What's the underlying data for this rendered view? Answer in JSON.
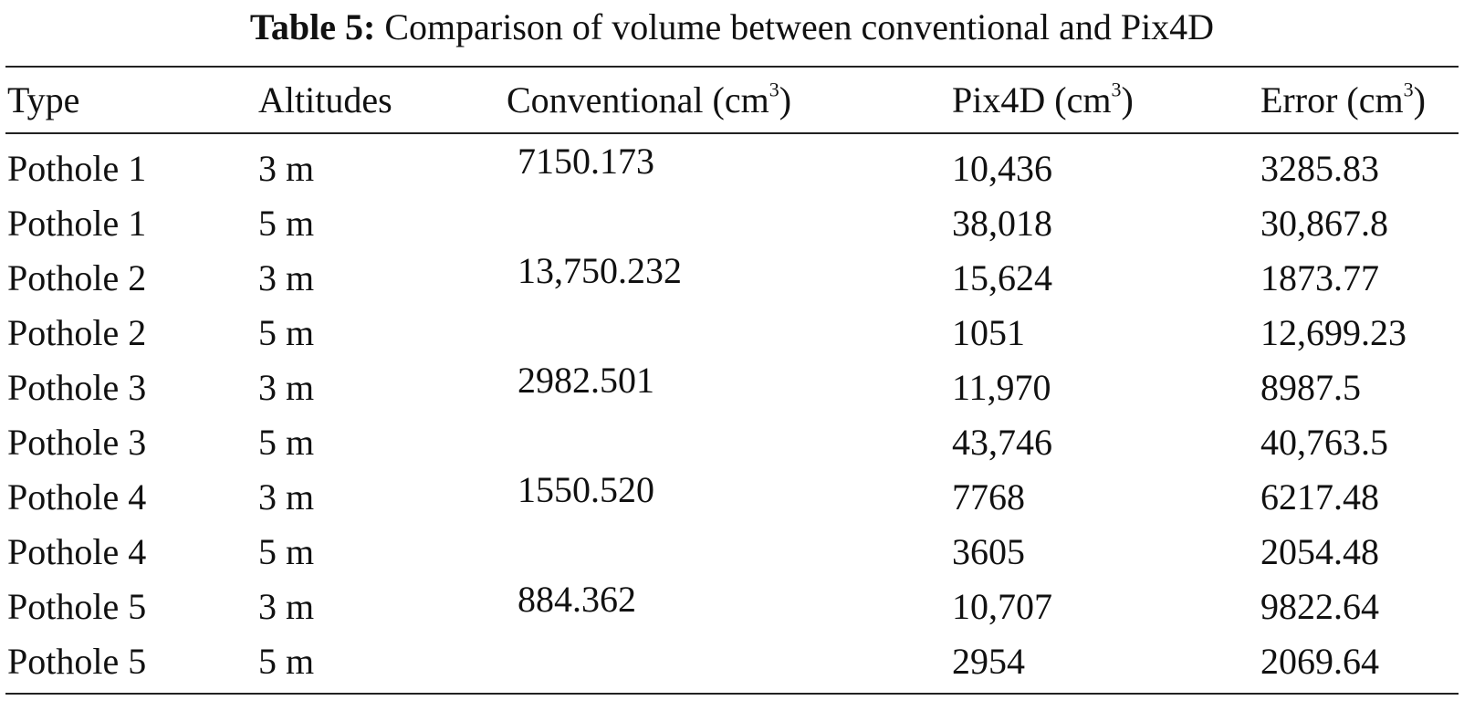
{
  "caption": {
    "label": "Table 5:",
    "text": "Comparison of volume between conventional and Pix4D"
  },
  "table": {
    "headers": {
      "type": "Type",
      "altitudes": "Altitudes",
      "conventional": "Conventional (cm",
      "pix4d": "Pix4D (cm",
      "error": "Error (cm",
      "unit_sup": "3",
      "close": ")"
    },
    "rows": [
      {
        "type": "Pothole 1",
        "altitude": "3 m",
        "conventional": "7150.173",
        "pix4d": "10,436",
        "error": "3285.83"
      },
      {
        "type": "Pothole 1",
        "altitude": "5 m",
        "conventional": "",
        "pix4d": "38,018",
        "error": "30,867.8"
      },
      {
        "type": "Pothole 2",
        "altitude": "3 m",
        "conventional": "13,750.232",
        "pix4d": "15,624",
        "error": "1873.77"
      },
      {
        "type": "Pothole 2",
        "altitude": "5 m",
        "conventional": "",
        "pix4d": "1051",
        "error": "12,699.23"
      },
      {
        "type": "Pothole 3",
        "altitude": "3 m",
        "conventional": "2982.501",
        "pix4d": "11,970",
        "error": "8987.5"
      },
      {
        "type": "Pothole 3",
        "altitude": "5 m",
        "conventional": "",
        "pix4d": "43,746",
        "error": "40,763.5"
      },
      {
        "type": "Pothole 4",
        "altitude": "3 m",
        "conventional": "1550.520",
        "pix4d": "7768",
        "error": "6217.48"
      },
      {
        "type": "Pothole 4",
        "altitude": "5 m",
        "conventional": "",
        "pix4d": "3605",
        "error": "2054.48"
      },
      {
        "type": "Pothole 5",
        "altitude": "3 m",
        "conventional": "884.362",
        "pix4d": "10,707",
        "error": "9822.64"
      },
      {
        "type": "Pothole 5",
        "altitude": "5 m",
        "conventional": "",
        "pix4d": "2954",
        "error": "2069.64"
      }
    ]
  }
}
